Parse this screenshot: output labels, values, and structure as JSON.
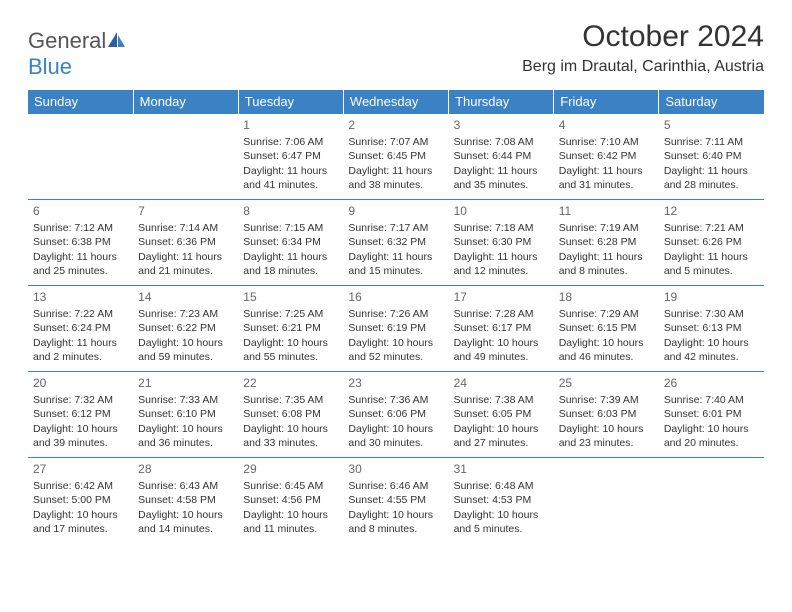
{
  "brand": {
    "name1": "General",
    "name2": "Blue",
    "color_gray": "#555555",
    "color_blue": "#3b82c4"
  },
  "header": {
    "title": "October 2024",
    "location": "Berg im Drautal, Carinthia, Austria"
  },
  "theme": {
    "header_bg": "#3b82c4",
    "header_text": "#ffffff",
    "border_color": "#3b82c4",
    "body_text": "#333333",
    "daynum_color": "#666666",
    "font_family": "Arial",
    "title_fontsize": 30,
    "location_fontsize": 16,
    "dayhead_fontsize": 13,
    "cell_fontsize": 10.5
  },
  "dayHeaders": [
    "Sunday",
    "Monday",
    "Tuesday",
    "Wednesday",
    "Thursday",
    "Friday",
    "Saturday"
  ],
  "weeks": [
    [
      null,
      null,
      {
        "n": "1",
        "sr": "Sunrise: 7:06 AM",
        "ss": "Sunset: 6:47 PM",
        "dl": "Daylight: 11 hours and 41 minutes."
      },
      {
        "n": "2",
        "sr": "Sunrise: 7:07 AM",
        "ss": "Sunset: 6:45 PM",
        "dl": "Daylight: 11 hours and 38 minutes."
      },
      {
        "n": "3",
        "sr": "Sunrise: 7:08 AM",
        "ss": "Sunset: 6:44 PM",
        "dl": "Daylight: 11 hours and 35 minutes."
      },
      {
        "n": "4",
        "sr": "Sunrise: 7:10 AM",
        "ss": "Sunset: 6:42 PM",
        "dl": "Daylight: 11 hours and 31 minutes."
      },
      {
        "n": "5",
        "sr": "Sunrise: 7:11 AM",
        "ss": "Sunset: 6:40 PM",
        "dl": "Daylight: 11 hours and 28 minutes."
      }
    ],
    [
      {
        "n": "6",
        "sr": "Sunrise: 7:12 AM",
        "ss": "Sunset: 6:38 PM",
        "dl": "Daylight: 11 hours and 25 minutes."
      },
      {
        "n": "7",
        "sr": "Sunrise: 7:14 AM",
        "ss": "Sunset: 6:36 PM",
        "dl": "Daylight: 11 hours and 21 minutes."
      },
      {
        "n": "8",
        "sr": "Sunrise: 7:15 AM",
        "ss": "Sunset: 6:34 PM",
        "dl": "Daylight: 11 hours and 18 minutes."
      },
      {
        "n": "9",
        "sr": "Sunrise: 7:17 AM",
        "ss": "Sunset: 6:32 PM",
        "dl": "Daylight: 11 hours and 15 minutes."
      },
      {
        "n": "10",
        "sr": "Sunrise: 7:18 AM",
        "ss": "Sunset: 6:30 PM",
        "dl": "Daylight: 11 hours and 12 minutes."
      },
      {
        "n": "11",
        "sr": "Sunrise: 7:19 AM",
        "ss": "Sunset: 6:28 PM",
        "dl": "Daylight: 11 hours and 8 minutes."
      },
      {
        "n": "12",
        "sr": "Sunrise: 7:21 AM",
        "ss": "Sunset: 6:26 PM",
        "dl": "Daylight: 11 hours and 5 minutes."
      }
    ],
    [
      {
        "n": "13",
        "sr": "Sunrise: 7:22 AM",
        "ss": "Sunset: 6:24 PM",
        "dl": "Daylight: 11 hours and 2 minutes."
      },
      {
        "n": "14",
        "sr": "Sunrise: 7:23 AM",
        "ss": "Sunset: 6:22 PM",
        "dl": "Daylight: 10 hours and 59 minutes."
      },
      {
        "n": "15",
        "sr": "Sunrise: 7:25 AM",
        "ss": "Sunset: 6:21 PM",
        "dl": "Daylight: 10 hours and 55 minutes."
      },
      {
        "n": "16",
        "sr": "Sunrise: 7:26 AM",
        "ss": "Sunset: 6:19 PM",
        "dl": "Daylight: 10 hours and 52 minutes."
      },
      {
        "n": "17",
        "sr": "Sunrise: 7:28 AM",
        "ss": "Sunset: 6:17 PM",
        "dl": "Daylight: 10 hours and 49 minutes."
      },
      {
        "n": "18",
        "sr": "Sunrise: 7:29 AM",
        "ss": "Sunset: 6:15 PM",
        "dl": "Daylight: 10 hours and 46 minutes."
      },
      {
        "n": "19",
        "sr": "Sunrise: 7:30 AM",
        "ss": "Sunset: 6:13 PM",
        "dl": "Daylight: 10 hours and 42 minutes."
      }
    ],
    [
      {
        "n": "20",
        "sr": "Sunrise: 7:32 AM",
        "ss": "Sunset: 6:12 PM",
        "dl": "Daylight: 10 hours and 39 minutes."
      },
      {
        "n": "21",
        "sr": "Sunrise: 7:33 AM",
        "ss": "Sunset: 6:10 PM",
        "dl": "Daylight: 10 hours and 36 minutes."
      },
      {
        "n": "22",
        "sr": "Sunrise: 7:35 AM",
        "ss": "Sunset: 6:08 PM",
        "dl": "Daylight: 10 hours and 33 minutes."
      },
      {
        "n": "23",
        "sr": "Sunrise: 7:36 AM",
        "ss": "Sunset: 6:06 PM",
        "dl": "Daylight: 10 hours and 30 minutes."
      },
      {
        "n": "24",
        "sr": "Sunrise: 7:38 AM",
        "ss": "Sunset: 6:05 PM",
        "dl": "Daylight: 10 hours and 27 minutes."
      },
      {
        "n": "25",
        "sr": "Sunrise: 7:39 AM",
        "ss": "Sunset: 6:03 PM",
        "dl": "Daylight: 10 hours and 23 minutes."
      },
      {
        "n": "26",
        "sr": "Sunrise: 7:40 AM",
        "ss": "Sunset: 6:01 PM",
        "dl": "Daylight: 10 hours and 20 minutes."
      }
    ],
    [
      {
        "n": "27",
        "sr": "Sunrise: 6:42 AM",
        "ss": "Sunset: 5:00 PM",
        "dl": "Daylight: 10 hours and 17 minutes."
      },
      {
        "n": "28",
        "sr": "Sunrise: 6:43 AM",
        "ss": "Sunset: 4:58 PM",
        "dl": "Daylight: 10 hours and 14 minutes."
      },
      {
        "n": "29",
        "sr": "Sunrise: 6:45 AM",
        "ss": "Sunset: 4:56 PM",
        "dl": "Daylight: 10 hours and 11 minutes."
      },
      {
        "n": "30",
        "sr": "Sunrise: 6:46 AM",
        "ss": "Sunset: 4:55 PM",
        "dl": "Daylight: 10 hours and 8 minutes."
      },
      {
        "n": "31",
        "sr": "Sunrise: 6:48 AM",
        "ss": "Sunset: 4:53 PM",
        "dl": "Daylight: 10 hours and 5 minutes."
      },
      null,
      null
    ]
  ]
}
